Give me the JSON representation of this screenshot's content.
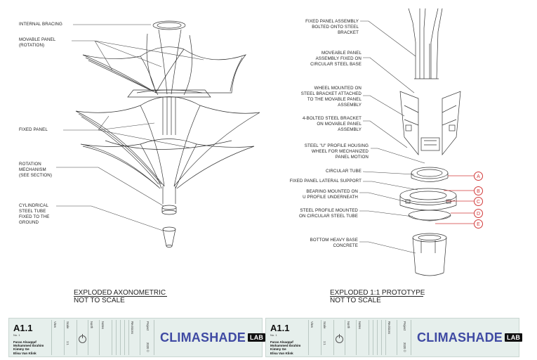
{
  "left_labels": {
    "internal_bracing": "INTERNAL BRACING",
    "movable_panel_1": "MOVABLE PANEL",
    "movable_panel_2": "(ROTATION)",
    "fixed_panel": "FIXED PANEL",
    "rotation_1": "ROTATION",
    "rotation_2": "MECHANISM",
    "rotation_3": "(SEE SECTION)",
    "tube_1": "CYLINDRICAL",
    "tube_2": "STEEL TUBE",
    "tube_3": "FIXED TO THE",
    "tube_4": "GROUND"
  },
  "right_labels": {
    "fixed_assembly_1": "FIXED PANEL ASSEMBLY",
    "fixed_assembly_2": "BOLTED ONTO STEEL",
    "fixed_assembly_3": "BRACKET",
    "moveable_assembly_1": "MOVEABLE PANEL",
    "moveable_assembly_2": "ASSEMBLY FIXED ON",
    "moveable_assembly_3": "CIRCULAR STEEL BASE",
    "wheel_1": "WHEEL MOUNTED ON",
    "wheel_2": "STEEL BRACKET ATTACHED",
    "wheel_3": "TO THE MOVABLE PANEL",
    "wheel_4": "ASSEMBLY",
    "bracket_1": "4-BOLTED STEEL BRACKET",
    "bracket_2": "ON MOVABLE PANEL",
    "bracket_3": "ASSEMBLY",
    "uprofile_1": "STEEL \"U\" PROFILE HOUSING",
    "uprofile_2": "WHEEL FOR MECHANIZED",
    "uprofile_3": "PANEL MOTION",
    "circular_tube": "CIRCULAR TUBE",
    "lateral_support": "FIXED PANEL LATERAL SUPPORT",
    "bearing_1": "BEARING MOUNTED ON",
    "bearing_2": "U PROFILE UNDERNEATH",
    "steel_profile_1": "STEEL PROFILE MOUNTED",
    "steel_profile_2": "ON CIRCULAR STEEL TUBE",
    "base_1": "BOTTOM HEAVY BASE",
    "base_2": "CONCRETE"
  },
  "markers": [
    "A",
    "B",
    "C",
    "D",
    "E"
  ],
  "captions": {
    "left_1": "EXPLODED AXONOMETRIC",
    "left_2": "NOT TO SCALE",
    "right_1": "EXPLODED 1:1 PROTOTYPE",
    "right_2": "NOT TO SCALE"
  },
  "title_block": {
    "code": "A1.1",
    "no": "No. 1",
    "names": [
      "Faras Alsaqqaf",
      "Mohammed Ibrahim",
      "Kimmy Ge",
      "Elisa Van Klink"
    ],
    "view": "View",
    "scale": "Scale",
    "scale_value": "1:1",
    "north": "North",
    "notes": "Notes",
    "revisions": "Revisions",
    "project": "Project",
    "year": "2020 ©",
    "brand": "CLIMASHADE",
    "brand_tag": "LAB"
  }
}
